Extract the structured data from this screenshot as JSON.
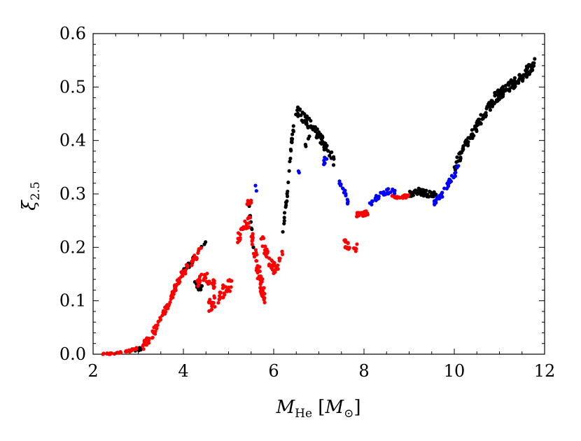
{
  "chart_data": {
    "type": "scatter",
    "title": "",
    "xlabel": "M_He [M_⊙]",
    "xlabel_parts": {
      "main": "M",
      "sub": "He",
      "unit_open": " [",
      "unit_main": "M",
      "unit_sub": "⊙",
      "unit_close": "]"
    },
    "ylabel": "ξ_2.5",
    "ylabel_parts": {
      "main": "ξ",
      "sub": "2.5"
    },
    "xlim": [
      2,
      12
    ],
    "ylim": [
      0.0,
      0.6
    ],
    "x_ticks": [
      2,
      4,
      6,
      8,
      10,
      12
    ],
    "x_tick_labels": [
      "2",
      "4",
      "6",
      "8",
      "10",
      "12"
    ],
    "y_ticks": [
      0.0,
      0.1,
      0.2,
      0.3,
      0.4,
      0.5,
      0.6
    ],
    "y_tick_labels": [
      "0.0",
      "0.1",
      "0.2",
      "0.3",
      "0.4",
      "0.5",
      "0.6"
    ],
    "grid": false,
    "legend": "none",
    "colors": {
      "black": "#000000",
      "red": "#ff0000",
      "blue": "#0000ff"
    },
    "series": [
      {
        "name": "black",
        "color": "#000000",
        "segments": [
          {
            "points": [
              [
                2.9,
                0.002
              ],
              [
                3.0,
                0.008
              ],
              [
                3.1,
                0.012
              ]
            ],
            "n": 8,
            "spread": 0.003
          },
          {
            "points": [
              [
                3.95,
                0.15
              ],
              [
                4.05,
                0.16
              ],
              [
                4.15,
                0.17
              ],
              [
                4.25,
                0.18
              ]
            ],
            "n": 20,
            "spread": 0.006
          },
          {
            "points": [
              [
                4.25,
                0.135
              ],
              [
                4.35,
                0.125
              ],
              [
                4.45,
                0.13
              ]
            ],
            "n": 14,
            "spread": 0.006
          },
          {
            "points": [
              [
                4.4,
                0.2
              ],
              [
                4.5,
                0.21
              ]
            ],
            "n": 3,
            "spread": 0.004
          },
          {
            "points": [
              [
                5.45,
                0.27
              ],
              [
                5.55,
                0.2
              ]
            ],
            "n": 10,
            "spread": 0.015
          },
          {
            "points": [
              [
                6.2,
                0.23
              ],
              [
                6.3,
                0.3
              ],
              [
                6.4,
                0.4
              ],
              [
                6.5,
                0.45
              ]
            ],
            "n": 30,
            "spread": 0.008
          },
          {
            "points": [
              [
                6.5,
                0.455
              ],
              [
                6.7,
                0.44
              ],
              [
                6.9,
                0.42
              ],
              [
                7.1,
                0.395
              ],
              [
                7.35,
                0.36
              ]
            ],
            "n": 80,
            "spread": 0.01
          },
          {
            "points": [
              [
                6.7,
                0.39
              ],
              [
                6.8,
                0.41
              ]
            ],
            "n": 4,
            "spread": 0.005
          },
          {
            "points": [
              [
                9.0,
                0.3
              ],
              [
                9.2,
                0.305
              ],
              [
                9.4,
                0.3
              ],
              [
                9.6,
                0.3
              ]
            ],
            "n": 45,
            "spread": 0.006
          },
          {
            "points": [
              [
                10.0,
                0.35
              ],
              [
                10.3,
                0.4
              ],
              [
                10.6,
                0.44
              ],
              [
                10.9,
                0.48
              ],
              [
                11.2,
                0.5
              ],
              [
                11.5,
                0.52
              ],
              [
                11.8,
                0.545
              ]
            ],
            "n": 200,
            "spread": 0.01
          }
        ]
      },
      {
        "name": "red",
        "color": "#ff0000",
        "segments": [
          {
            "points": [
              [
                2.2,
                0.0
              ],
              [
                2.5,
                0.002
              ],
              [
                2.8,
                0.006
              ],
              [
                3.0,
                0.012
              ]
            ],
            "n": 28,
            "spread": 0.002
          },
          {
            "points": [
              [
                3.1,
                0.015
              ],
              [
                3.3,
                0.035
              ],
              [
                3.5,
                0.065
              ],
              [
                3.7,
                0.1
              ],
              [
                3.9,
                0.14
              ],
              [
                4.1,
                0.165
              ],
              [
                4.4,
                0.195
              ]
            ],
            "n": 110,
            "spread": 0.008
          },
          {
            "points": [
              [
                4.3,
                0.135
              ],
              [
                4.5,
                0.145
              ],
              [
                4.7,
                0.13
              ]
            ],
            "n": 30,
            "spread": 0.01
          },
          {
            "points": [
              [
                4.55,
                0.09
              ],
              [
                4.7,
                0.1
              ],
              [
                4.9,
                0.12
              ],
              [
                5.1,
                0.135
              ]
            ],
            "n": 45,
            "spread": 0.012
          },
          {
            "points": [
              [
                5.2,
                0.215
              ],
              [
                5.35,
                0.24
              ],
              [
                5.5,
                0.25
              ]
            ],
            "n": 25,
            "spread": 0.01
          },
          {
            "points": [
              [
                5.4,
                0.28
              ],
              [
                5.5,
                0.285
              ]
            ],
            "n": 8,
            "spread": 0.006
          },
          {
            "points": [
              [
                5.5,
                0.23
              ],
              [
                5.6,
                0.18
              ],
              [
                5.7,
                0.14
              ],
              [
                5.8,
                0.11
              ]
            ],
            "n": 55,
            "spread": 0.02
          },
          {
            "points": [
              [
                5.7,
                0.22
              ],
              [
                5.8,
                0.2
              ],
              [
                5.9,
                0.17
              ]
            ],
            "n": 20,
            "spread": 0.015
          },
          {
            "points": [
              [
                5.9,
                0.18
              ],
              [
                6.0,
                0.16
              ],
              [
                6.1,
                0.17
              ],
              [
                6.2,
                0.2
              ]
            ],
            "n": 25,
            "spread": 0.012
          },
          {
            "points": [
              [
                7.55,
                0.21
              ],
              [
                7.7,
                0.2
              ],
              [
                7.85,
                0.2
              ]
            ],
            "n": 20,
            "spread": 0.008
          },
          {
            "points": [
              [
                7.8,
                0.26
              ],
              [
                7.95,
                0.262
              ],
              [
                8.1,
                0.265
              ]
            ],
            "n": 20,
            "spread": 0.004
          },
          {
            "points": [
              [
                8.6,
                0.295
              ],
              [
                8.8,
                0.295
              ],
              [
                9.0,
                0.295
              ]
            ],
            "n": 22,
            "spread": 0.003
          }
        ]
      },
      {
        "name": "blue",
        "color": "#0000ff",
        "segments": [
          {
            "points": [
              [
                5.6,
                0.31
              ]
            ],
            "n": 2,
            "spread": 0.006
          },
          {
            "points": [
              [
                6.55,
                0.34
              ]
            ],
            "n": 2,
            "spread": 0.004
          },
          {
            "points": [
              [
                7.1,
                0.36
              ],
              [
                7.2,
                0.37
              ]
            ],
            "n": 6,
            "spread": 0.006
          },
          {
            "points": [
              [
                7.45,
                0.32
              ],
              [
                7.55,
                0.31
              ],
              [
                7.65,
                0.28
              ]
            ],
            "n": 14,
            "spread": 0.006
          },
          {
            "points": [
              [
                8.1,
                0.275
              ],
              [
                8.3,
                0.295
              ],
              [
                8.5,
                0.305
              ],
              [
                8.7,
                0.305
              ]
            ],
            "n": 32,
            "spread": 0.005
          },
          {
            "points": [
              [
                9.55,
                0.285
              ],
              [
                9.75,
                0.3
              ],
              [
                9.95,
                0.33
              ],
              [
                10.1,
                0.35
              ]
            ],
            "n": 38,
            "spread": 0.007
          }
        ]
      }
    ]
  }
}
